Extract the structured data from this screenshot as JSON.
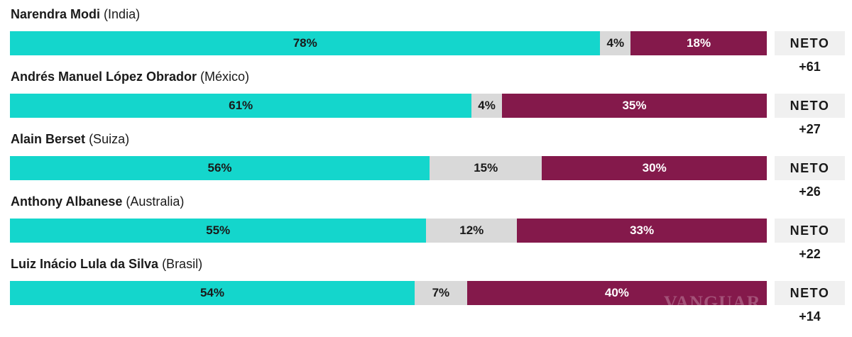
{
  "chart_data": {
    "type": "bar",
    "orientation": "horizontal",
    "stacked": true,
    "colors": {
      "approve": "#14d6cc",
      "neutral": "#d9d9d9",
      "disapprove": "#84194b"
    },
    "neto_label": "NETO",
    "rows": [
      {
        "name": "Narendra Modi",
        "country": "(India)",
        "approve": 78,
        "neutral": 4,
        "disapprove": 18,
        "approve_label": "78%",
        "neutral_label": "4%",
        "disapprove_label": "18%",
        "net": "+61"
      },
      {
        "name": "Andrés Manuel López Obrador",
        "country": "(México)",
        "approve": 61,
        "neutral": 4,
        "disapprove": 35,
        "approve_label": "61%",
        "neutral_label": "4%",
        "disapprove_label": "35%",
        "net": "+27"
      },
      {
        "name": "Alain Berset",
        "country": "(Suiza)",
        "approve": 56,
        "neutral": 15,
        "disapprove": 30,
        "approve_label": "56%",
        "neutral_label": "15%",
        "disapprove_label": "30%",
        "net": "+26"
      },
      {
        "name": "Anthony Albanese",
        "country": "(Australia)",
        "approve": 55,
        "neutral": 12,
        "disapprove": 33,
        "approve_label": "55%",
        "neutral_label": "12%",
        "disapprove_label": "33%",
        "net": "+22"
      },
      {
        "name": "Luiz Inácio Lula da Silva",
        "country": "(Brasil)",
        "approve": 54,
        "neutral": 7,
        "disapprove": 40,
        "approve_label": "54%",
        "neutral_label": "7%",
        "disapprove_label": "40%",
        "net": "+14"
      }
    ]
  },
  "watermark": "VANGUARDIA"
}
